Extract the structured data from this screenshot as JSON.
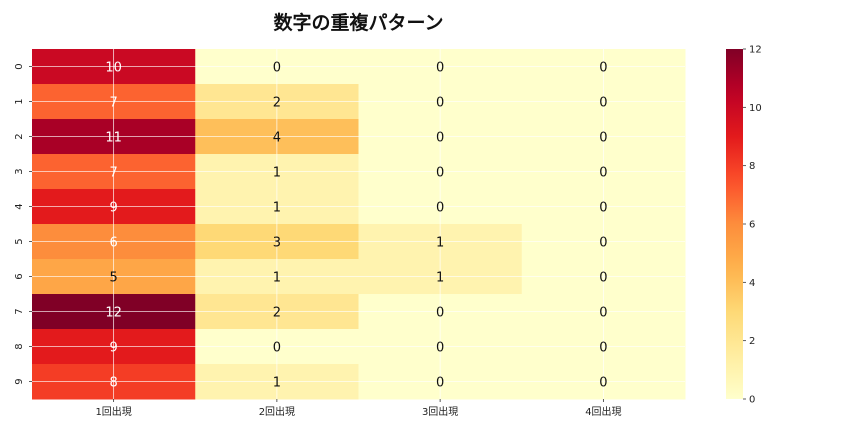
{
  "chart_data": {
    "type": "heatmap",
    "title": "数字の重複パターン",
    "xlabel": "",
    "ylabel": "",
    "columns": [
      "1回出現",
      "2回出現",
      "3回出現",
      "4回出現"
    ],
    "rows": [
      "0",
      "1",
      "2",
      "3",
      "4",
      "5",
      "6",
      "7",
      "8",
      "9"
    ],
    "values": [
      [
        10,
        0,
        0,
        0
      ],
      [
        7,
        2,
        0,
        0
      ],
      [
        11,
        4,
        0,
        0
      ],
      [
        7,
        1,
        0,
        0
      ],
      [
        9,
        1,
        0,
        0
      ],
      [
        6,
        3,
        1,
        0
      ],
      [
        5,
        1,
        1,
        0
      ],
      [
        12,
        2,
        0,
        0
      ],
      [
        9,
        0,
        0,
        0
      ],
      [
        8,
        1,
        0,
        0
      ]
    ],
    "colormap": "YlOrRd",
    "colorbar": {
      "min": 0,
      "max": 12,
      "ticks": [
        0,
        2,
        4,
        6,
        8,
        10,
        12
      ]
    },
    "grid": true
  }
}
